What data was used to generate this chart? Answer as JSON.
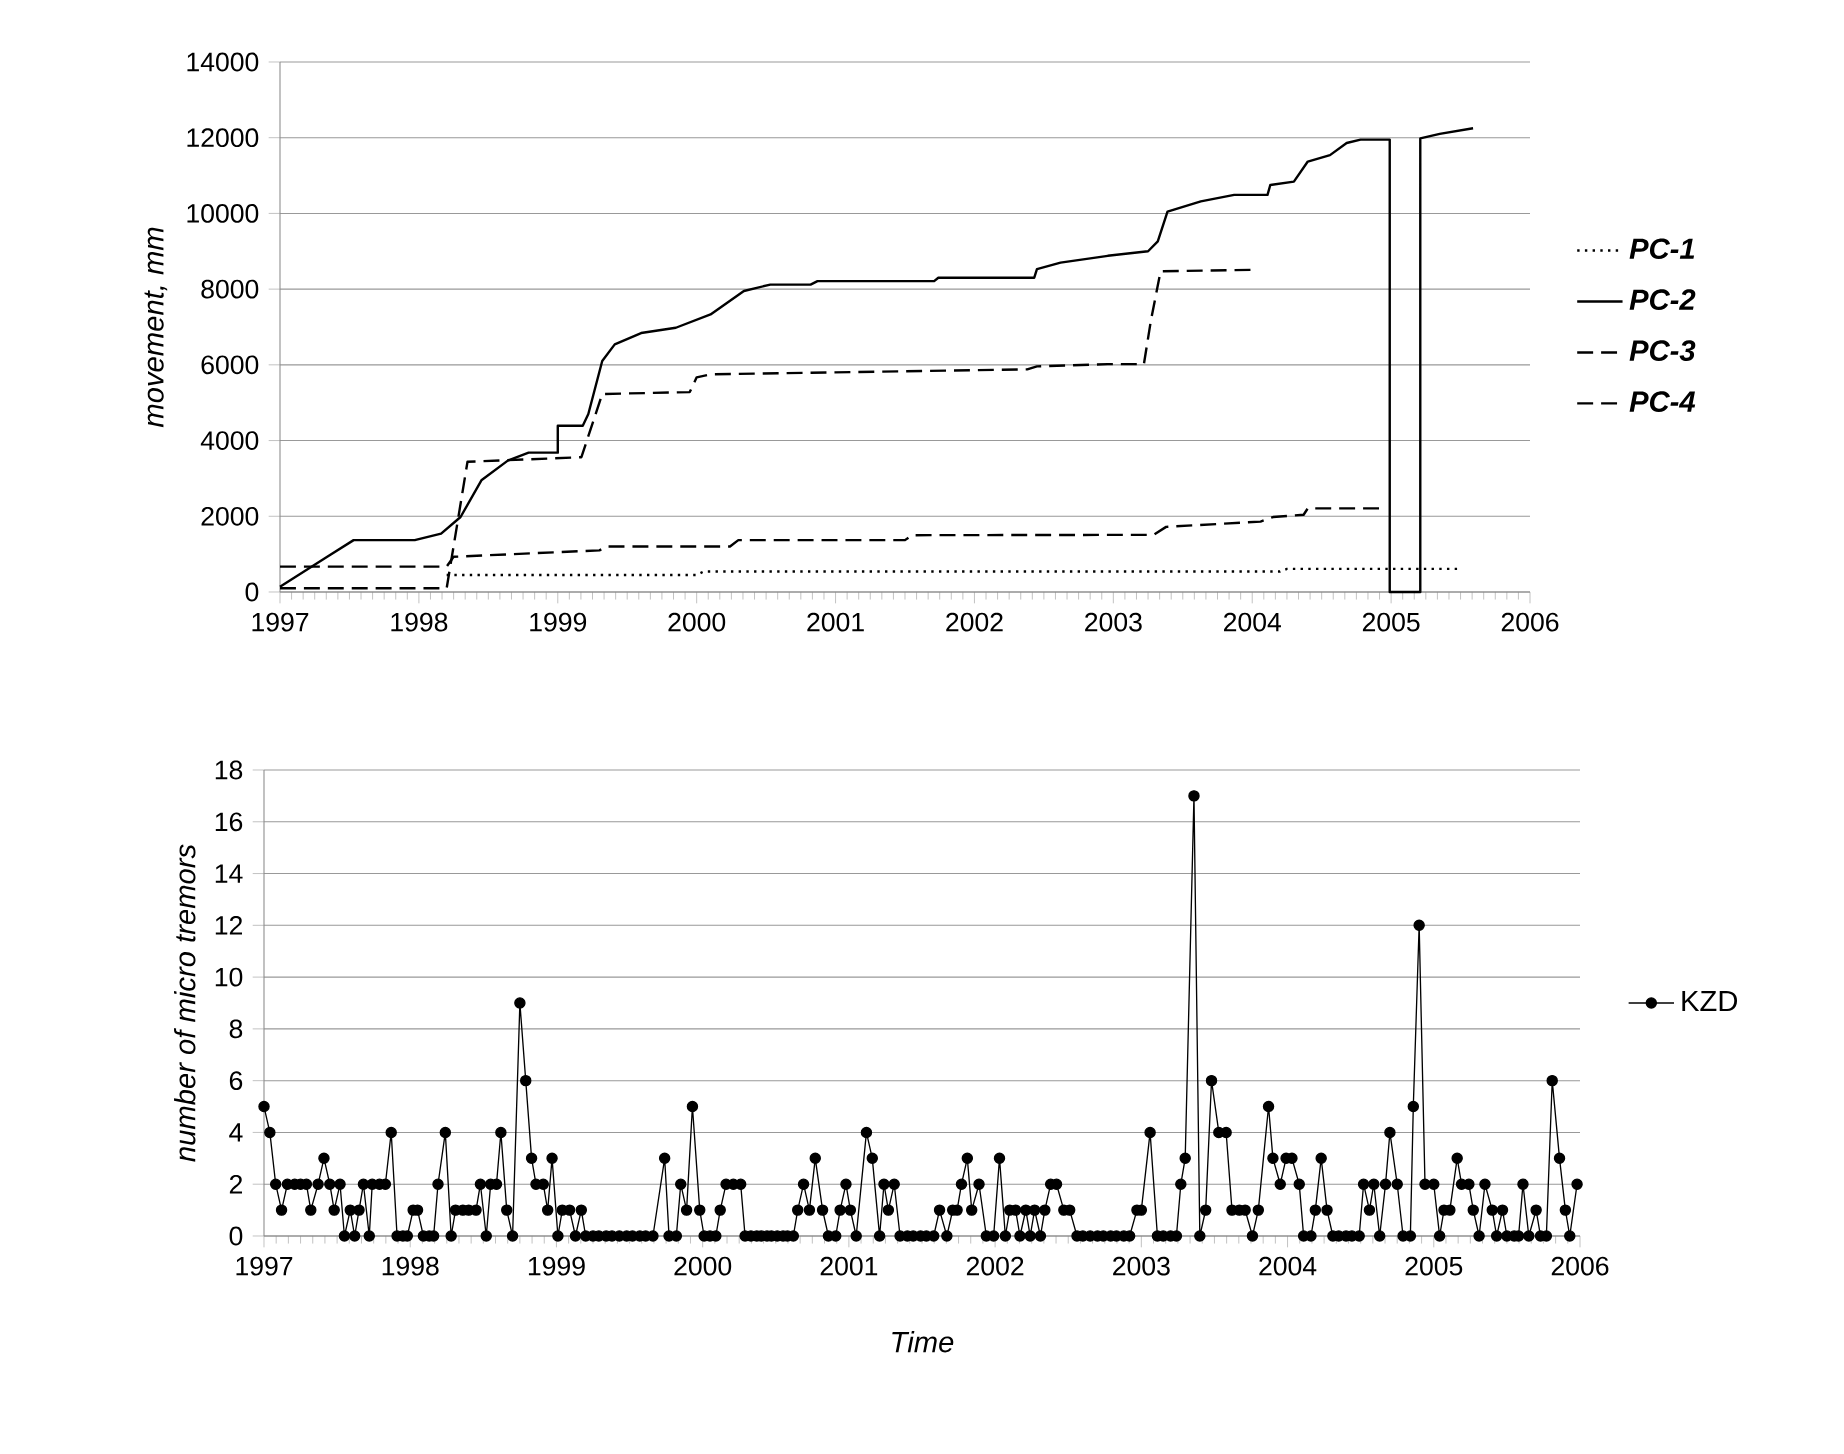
{
  "chart_data": [
    {
      "type": "line",
      "ylabel": "movement, mm",
      "xlim": [
        1997,
        2006
      ],
      "ylim": [
        0,
        14000
      ],
      "xticks": [
        1997,
        1998,
        1999,
        2000,
        2001,
        2002,
        2003,
        2004,
        2005,
        2006
      ],
      "yticks": [
        0,
        2000,
        4000,
        6000,
        8000,
        10000,
        12000,
        14000
      ],
      "grid": "y",
      "legend": "right",
      "series": [
        {
          "name": "PC-1",
          "color": "#000000",
          "line_style": "dotted",
          "x": [
            1998.2,
            2000.0,
            2000.05,
            2004.2,
            2004.25,
            2005.5
          ],
          "values": [
            450,
            450,
            540,
            540,
            610,
            610
          ]
        },
        {
          "name": "PC-2",
          "color": "#000000",
          "line_style": "solid",
          "x": [
            1997.0,
            1997.34,
            1997.53,
            1997.97,
            1998.16,
            1998.3,
            1998.45,
            1998.64,
            1998.79,
            1999.0,
            1999.0,
            1999.18,
            1999.22,
            1999.32,
            1999.41,
            1999.6,
            1999.85,
            2000.1,
            2000.34,
            2000.53,
            2000.82,
            2000.87,
            2001.71,
            2001.74,
            2002.43,
            2002.45,
            2002.62,
            2002.96,
            2003.25,
            2003.32,
            2003.39,
            2003.63,
            2003.87,
            2004.11,
            2004.13,
            2004.3,
            2004.4,
            2004.56,
            2004.68,
            2004.78,
            2004.99,
            2004.99,
            2005.21,
            2005.21,
            2005.35,
            2005.59
          ],
          "values": [
            140,
            930,
            1370,
            1370,
            1540,
            1980,
            2950,
            3470,
            3680,
            3680,
            4390,
            4390,
            4700,
            6100,
            6540,
            6840,
            6980,
            7330,
            7950,
            8120,
            8120,
            8210,
            8210,
            8300,
            8300,
            8530,
            8700,
            8880,
            9000,
            9260,
            10050,
            10320,
            10490,
            10490,
            10750,
            10840,
            11370,
            11540,
            11860,
            11950,
            11950,
            0,
            0,
            11980,
            12100,
            12250
          ]
        },
        {
          "name": "PC-3",
          "color": "#000000",
          "line_style": "dashed",
          "x": [
            1997.0,
            1998.2,
            1998.35,
            1999.17,
            1999.32,
            1999.95,
            2000.0,
            2000.1,
            2002.38,
            2002.45,
            2002.96,
            2003.22,
            2003.27,
            2003.34,
            2003.99
          ],
          "values": [
            100,
            100,
            3440,
            3560,
            5230,
            5280,
            5670,
            5750,
            5880,
            5960,
            6020,
            6020,
            7160,
            8470,
            8510
          ]
        },
        {
          "name": "PC-4",
          "color": "#000000",
          "line_style": "dashed",
          "x": [
            1997.0,
            1998.2,
            1998.25,
            1999.3,
            1999.35,
            2000.24,
            2000.3,
            2001.5,
            2001.55,
            2003.29,
            2003.38,
            2004.06,
            2004.15,
            2004.37,
            2004.4,
            2004.97
          ],
          "values": [
            670,
            670,
            930,
            1100,
            1200,
            1200,
            1370,
            1370,
            1500,
            1510,
            1720,
            1860,
            1980,
            2040,
            2210,
            2210
          ]
        }
      ]
    },
    {
      "type": "line",
      "xlabel": "Time",
      "ylabel": "number of micro tremors",
      "xlim": [
        1997,
        2006
      ],
      "ylim": [
        0,
        18
      ],
      "xticks": [
        1997,
        1998,
        1999,
        2000,
        2001,
        2002,
        2003,
        2004,
        2005,
        2006
      ],
      "yticks": [
        0,
        2,
        4,
        6,
        8,
        10,
        12,
        14,
        16,
        18
      ],
      "grid": "y",
      "legend": "right",
      "marker": "circle",
      "x": [
        1997.0,
        1997.04,
        1997.08,
        1997.12,
        1997.16,
        1997.21,
        1997.25,
        1997.29,
        1997.32,
        1997.37,
        1997.41,
        1997.45,
        1997.48,
        1997.52,
        1997.55,
        1997.59,
        1997.62,
        1997.65,
        1997.68,
        1997.72,
        1997.74,
        1997.79,
        1997.83,
        1997.87,
        1997.91,
        1997.95,
        1997.98,
        1998.02,
        1998.05,
        1998.09,
        1998.13,
        1998.16,
        1998.19,
        1998.24,
        1998.28,
        1998.31,
        1998.36,
        1998.4,
        1998.45,
        1998.48,
        1998.52,
        1998.55,
        1998.59,
        1998.62,
        1998.66,
        1998.7,
        1998.75,
        1998.79,
        1998.83,
        1998.86,
        1998.91,
        1998.94,
        1998.97,
        1999.01,
        1999.04,
        1999.09,
        1999.13,
        1999.17,
        1999.2,
        1999.25,
        1999.29,
        1999.34,
        1999.38,
        1999.43,
        1999.48,
        1999.52,
        1999.57,
        1999.61,
        1999.66,
        1999.74,
        1999.77,
        1999.82,
        1999.85,
        1999.89,
        1999.93,
        1999.98,
        2000.01,
        2000.05,
        2000.09,
        2000.12,
        2000.16,
        2000.21,
        2000.26,
        2000.29,
        2000.33,
        2000.37,
        2000.4,
        2000.44,
        2000.47,
        2000.51,
        2000.55,
        2000.58,
        2000.62,
        2000.65,
        2000.69,
        2000.73,
        2000.77,
        2000.82,
        2000.86,
        2000.91,
        2000.94,
        2000.98,
        2001.01,
        2001.05,
        2001.12,
        2001.16,
        2001.21,
        2001.24,
        2001.27,
        2001.31,
        2001.35,
        2001.4,
        2001.44,
        2001.49,
        2001.53,
        2001.58,
        2001.62,
        2001.67,
        2001.71,
        2001.74,
        2001.77,
        2001.81,
        2001.84,
        2001.89,
        2001.94,
        2001.99,
        2002.03,
        2002.07,
        2002.1,
        2002.14,
        2002.17,
        2002.21,
        2002.24,
        2002.27,
        2002.31,
        2002.34,
        2002.38,
        2002.42,
        2002.47,
        2002.51,
        2002.56,
        2002.6,
        2002.65,
        2002.7,
        2002.74,
        2002.79,
        2002.83,
        2002.88,
        2002.92,
        2002.97,
        2003.0,
        2003.06,
        2003.11,
        2003.15,
        2003.2,
        2003.24,
        2003.27,
        2003.3,
        2003.36,
        2003.4,
        2003.44,
        2003.48,
        2003.53,
        2003.58,
        2003.62,
        2003.67,
        2003.71,
        2003.76,
        2003.8,
        2003.87,
        2003.9,
        2003.95,
        2003.99,
        2004.03,
        2004.08,
        2004.11,
        2004.16,
        2004.19,
        2004.23,
        2004.27,
        2004.31,
        2004.35,
        2004.4,
        2004.44,
        2004.49,
        2004.52,
        2004.56,
        2004.59,
        2004.63,
        2004.67,
        2004.7,
        2004.75,
        2004.79,
        2004.84,
        2004.86,
        2004.9,
        2004.94,
        2005.0,
        2005.04,
        2005.07,
        2005.11,
        2005.16,
        2005.19,
        2005.24,
        2005.27,
        2005.31,
        2005.35,
        2005.4,
        2005.43,
        2005.47,
        2005.5,
        2005.55,
        2005.58,
        2005.61,
        2005.65,
        2005.7,
        2005.73,
        2005.77,
        2005.81,
        2005.86,
        2005.9,
        2005.93,
        2005.98
      ],
      "series": [
        {
          "name": "KZD",
          "color": "#000000",
          "values": [
            5,
            4,
            2,
            1,
            2,
            2,
            2,
            2,
            1,
            2,
            3,
            2,
            1,
            2,
            0,
            1,
            0,
            1,
            2,
            0,
            2,
            2,
            2,
            4,
            0,
            0,
            0,
            1,
            1,
            0,
            0,
            0,
            2,
            4,
            0,
            1,
            1,
            1,
            1,
            2,
            0,
            2,
            2,
            4,
            1,
            0,
            9,
            6,
            3,
            2,
            2,
            1,
            3,
            0,
            1,
            1,
            0,
            1,
            0,
            0,
            0,
            0,
            0,
            0,
            0,
            0,
            0,
            0,
            0,
            3,
            0,
            0,
            2,
            1,
            5,
            1,
            0,
            0,
            0,
            1,
            2,
            2,
            2,
            0,
            0,
            0,
            0,
            0,
            0,
            0,
            0,
            0,
            0,
            1,
            2,
            1,
            3,
            1,
            0,
            0,
            1,
            2,
            1,
            0,
            4,
            3,
            0,
            2,
            1,
            2,
            0,
            0,
            0,
            0,
            0,
            0,
            1,
            0,
            1,
            1,
            2,
            3,
            1,
            2,
            0,
            0,
            3,
            0,
            1,
            1,
            0,
            1,
            0,
            1,
            0,
            1,
            2,
            2,
            1,
            1,
            0,
            0,
            0,
            0,
            0,
            0,
            0,
            0,
            0,
            1,
            1,
            4,
            0,
            0,
            0,
            0,
            2,
            3,
            17,
            0,
            1,
            6,
            4,
            4,
            1,
            1,
            1,
            0,
            1,
            5,
            3,
            2,
            3,
            3,
            2,
            0,
            0,
            1,
            3,
            1,
            0,
            0,
            0,
            0,
            0,
            2,
            1,
            2,
            0,
            2,
            4,
            2,
            0,
            0,
            5,
            12,
            2,
            2,
            0,
            1,
            1,
            3,
            2,
            2,
            1,
            0,
            2,
            1,
            0,
            1,
            0,
            0,
            0,
            2,
            0,
            1,
            0,
            0,
            6,
            3,
            1,
            0,
            2
          ]
        }
      ]
    }
  ]
}
